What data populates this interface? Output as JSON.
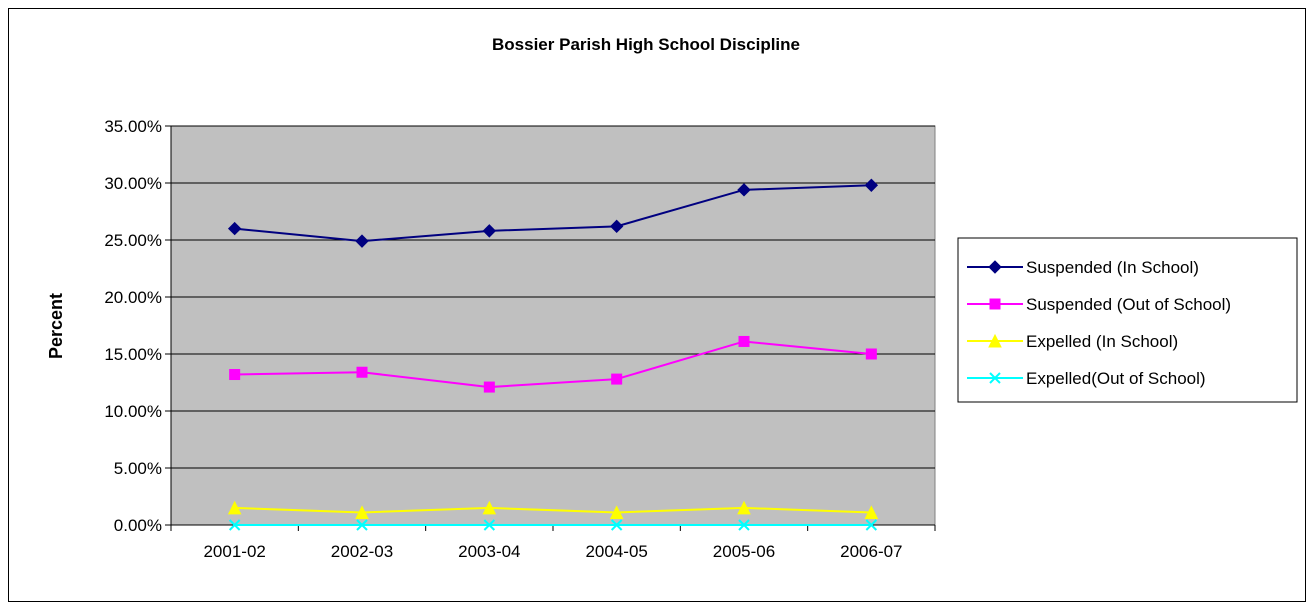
{
  "chart_data": {
    "type": "line",
    "title": "Bossier Parish High School Discipline",
    "xlabel": "",
    "ylabel": "Percent",
    "categories": [
      "2001-02",
      "2002-03",
      "2003-04",
      "2004-05",
      "2005-06",
      "2006-07"
    ],
    "ylim": [
      0,
      0.35
    ],
    "yticks": [
      0,
      0.05,
      0.1,
      0.15,
      0.2,
      0.25,
      0.3,
      0.35
    ],
    "ytick_labels": [
      "0.00%",
      "5.00%",
      "10.00%",
      "15.00%",
      "20.00%",
      "25.00%",
      "30.00%",
      "35.00%"
    ],
    "grid": true,
    "plot_background": "#c0c0c0",
    "legend_position": "right",
    "series": [
      {
        "name": "Suspended (In School)",
        "values": [
          0.26,
          0.249,
          0.258,
          0.262,
          0.294,
          0.298
        ],
        "color": "#000080",
        "marker": "diamond"
      },
      {
        "name": "Suspended (Out of School)",
        "values": [
          0.132,
          0.134,
          0.121,
          0.128,
          0.161,
          0.15
        ],
        "color": "#ff00ff",
        "marker": "square"
      },
      {
        "name": "Expelled (In School)",
        "values": [
          0.015,
          0.011,
          0.015,
          0.011,
          0.015,
          0.011
        ],
        "color": "#ffff00",
        "marker": "triangle"
      },
      {
        "name": "Expelled(Out of School)",
        "values": [
          0.0,
          0.0,
          0.0,
          0.0,
          0.0,
          0.0
        ],
        "color": "#00ffff",
        "marker": "x"
      }
    ]
  }
}
